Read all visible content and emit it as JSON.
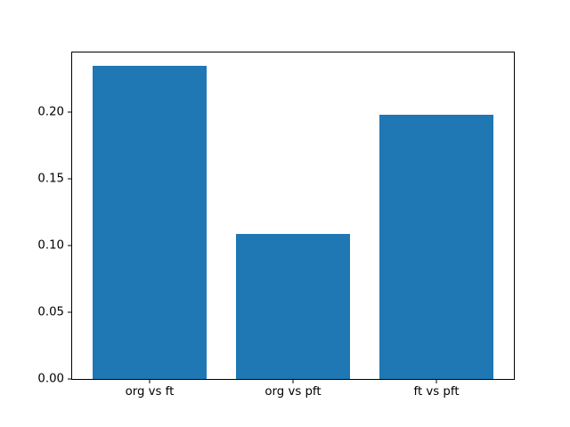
{
  "chart_data": {
    "type": "bar",
    "categories": [
      "org vs ft",
      "org vs pft",
      "ft vs pft"
    ],
    "values": [
      0.235,
      0.109,
      0.198
    ],
    "title": "",
    "xlabel": "",
    "ylabel": "",
    "ylim": [
      0,
      0.2447
    ],
    "xlim": [
      -0.54,
      2.54
    ],
    "bar_positions": [
      0,
      1,
      2
    ],
    "bar_width": 0.8,
    "yticks": [
      0.0,
      0.05,
      0.1,
      0.15,
      0.2
    ],
    "ytick_labels": [
      "0.00",
      "0.05",
      "0.10",
      "0.15",
      "0.20"
    ],
    "bar_color": "#1f77b4",
    "spine_color": "#000000",
    "background_color": "#ffffff",
    "grid": false,
    "legend": null
  }
}
